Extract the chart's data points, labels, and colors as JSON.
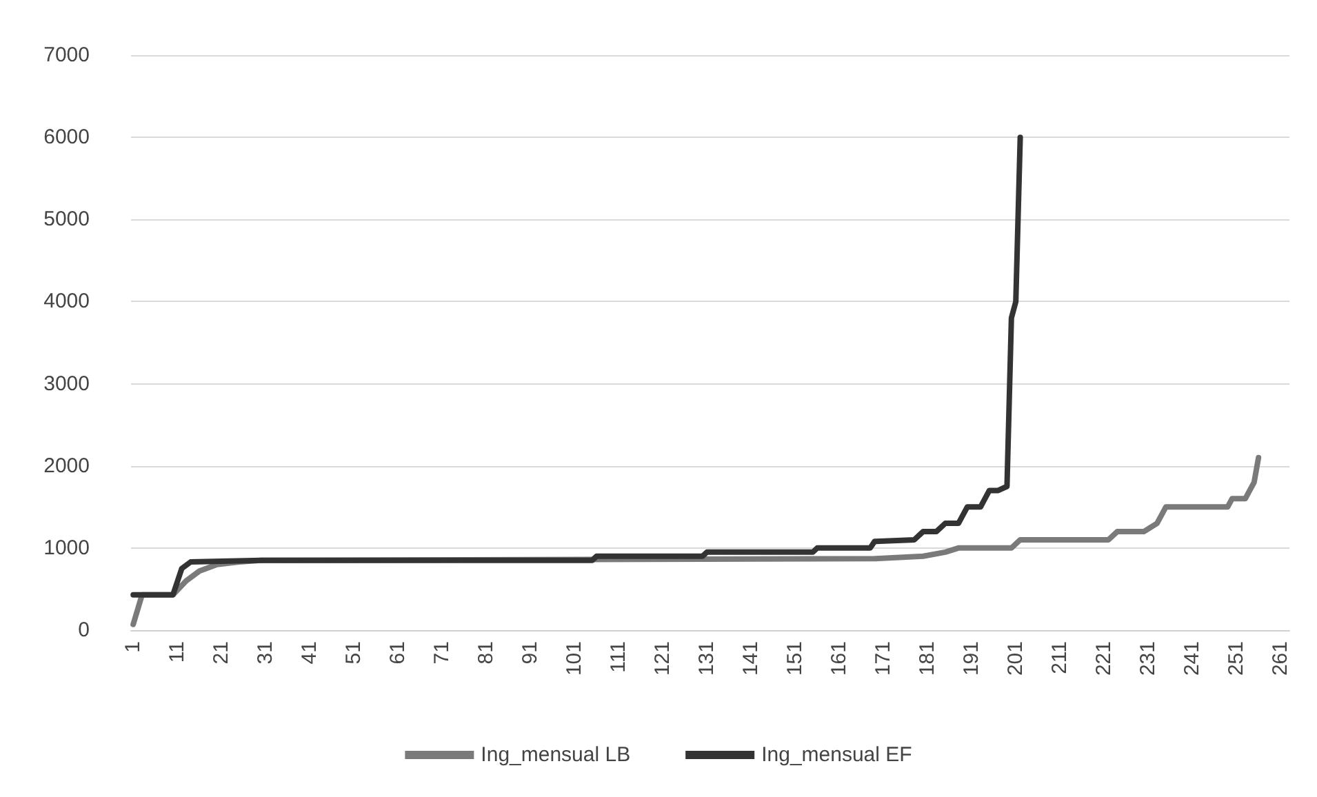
{
  "chart_data": {
    "type": "line",
    "xlim": [
      0.5,
      263
    ],
    "xticks": [
      1,
      11,
      21,
      31,
      41,
      51,
      61,
      71,
      81,
      91,
      101,
      111,
      121,
      131,
      141,
      151,
      161,
      171,
      181,
      191,
      201,
      211,
      221,
      231,
      241,
      251,
      261
    ],
    "ylim": [
      0,
      7000
    ],
    "yticks": [
      0,
      1000,
      2000,
      3000,
      4000,
      5000,
      6000,
      7000
    ],
    "grid": "y",
    "legend": "bottom",
    "marker": "none",
    "line_style": "solid",
    "series": [
      {
        "name": "Ing_mensual LB",
        "color": "#7a7a7a",
        "x": [
          1,
          3,
          10,
          13,
          16,
          20,
          25,
          30,
          169,
          180,
          185,
          188,
          200,
          202,
          222,
          224,
          230,
          233,
          235,
          249,
          250,
          253,
          254,
          255,
          256
        ],
        "values": [
          70,
          430,
          430,
          600,
          720,
          800,
          830,
          850,
          870,
          900,
          950,
          1000,
          1000,
          1100,
          1100,
          1200,
          1200,
          1300,
          1500,
          1500,
          1600,
          1600,
          1700,
          1800,
          2100
        ]
      },
      {
        "name": "Ing_mensual EF",
        "color": "#333333",
        "x": [
          1,
          10,
          12,
          14,
          30,
          105,
          106,
          130,
          131,
          155,
          156,
          168,
          169,
          178,
          180,
          183,
          185,
          188,
          190,
          193,
          195,
          197,
          199,
          200,
          201,
          202
        ],
        "values": [
          430,
          430,
          750,
          830,
          850,
          850,
          900,
          900,
          950,
          950,
          1000,
          1000,
          1080,
          1100,
          1200,
          1200,
          1300,
          1300,
          1500,
          1500,
          1700,
          1700,
          1750,
          3800,
          4000,
          6000
        ]
      }
    ]
  }
}
